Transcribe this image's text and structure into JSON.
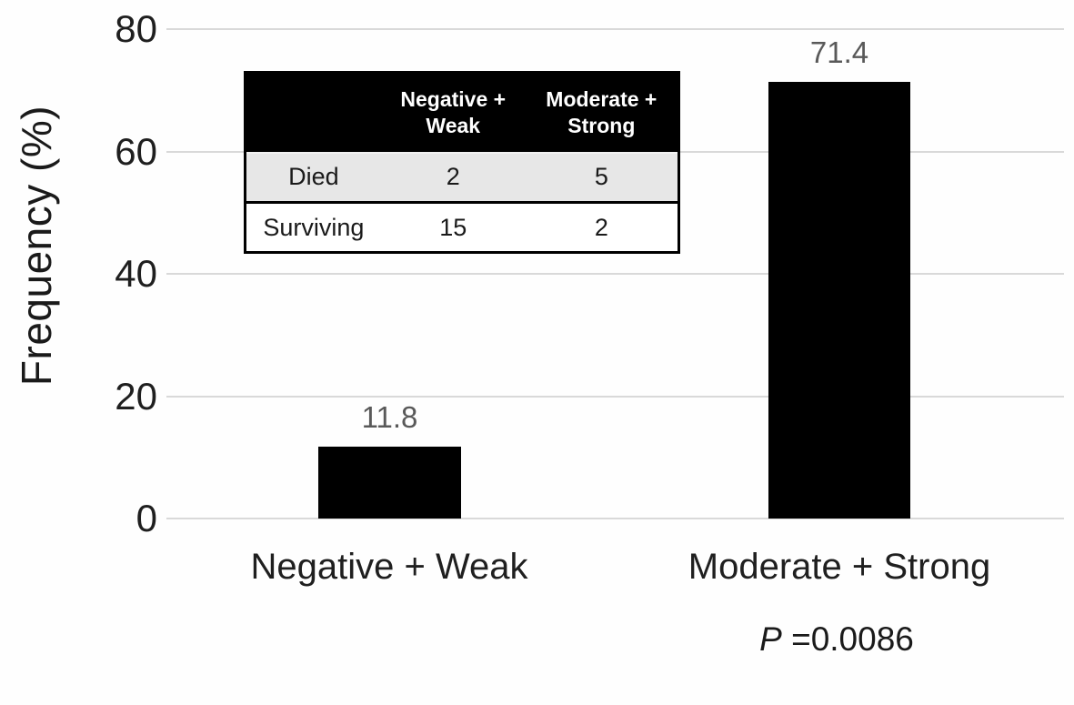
{
  "chart_data": {
    "type": "bar",
    "title": "",
    "xlabel": "",
    "ylabel": "Frequency (%)",
    "categories": [
      "Negative + Weak",
      "Moderate + Strong"
    ],
    "values": [
      11.8,
      71.4
    ],
    "value_labels": [
      "11.8",
      "71.4"
    ],
    "ylim": [
      0,
      80
    ],
    "yticks": [
      0,
      20,
      40,
      60,
      80
    ],
    "grid": "horizontal",
    "legend": "none",
    "bar_color": "#000000",
    "gridline_color": "#d9d9d9",
    "value_label_color": "#595959",
    "annotation": {
      "prefix": "P",
      "text": "=0.0086"
    }
  },
  "inset_table": {
    "corner_label": "",
    "col_headers": [
      "Negative +\nWeak",
      "Moderate +\nStrong"
    ],
    "rows": [
      {
        "label": "Died",
        "values": [
          "2",
          "5"
        ]
      },
      {
        "label": "Surviving",
        "values": [
          "15",
          "2"
        ]
      }
    ],
    "header_bg": "#000000",
    "header_text_color": "#ffffff",
    "row_backgrounds": [
      "#e7e7e7",
      "#ffffff"
    ],
    "border_color": "#000000"
  }
}
